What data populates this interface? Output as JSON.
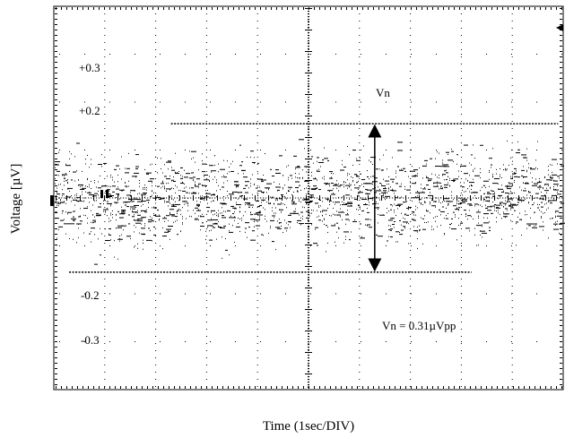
{
  "chart_data": {
    "type": "line",
    "title": "",
    "xlabel": "Time (1sec/DIV)",
    "ylabel": "Voltage [µV]",
    "xlim": [
      0,
      10
    ],
    "ylim": [
      -0.4,
      0.4
    ],
    "y_tick_labels": [
      {
        "value": 0.3,
        "label": "+0.3"
      },
      {
        "value": 0.2,
        "label": "+0.2"
      },
      {
        "value": -0.2,
        "label": "-0.2"
      },
      {
        "value": -0.3,
        "label": "-0.3"
      }
    ],
    "grid": "dotted",
    "noise_band": {
      "center": 0.0,
      "upper": 0.155,
      "lower": -0.155
    },
    "reference_lines": [
      {
        "name": "upper",
        "value": 0.155,
        "x_start": 2.3,
        "x_end": 9.9
      },
      {
        "name": "lower",
        "value": -0.155,
        "x_start": 0.3,
        "x_end": 8.2
      }
    ],
    "annotations": {
      "arrow_label": "Vn",
      "arrow_x": 6.3,
      "measurement": "Vn = 0.31µVpp"
    },
    "colors": {
      "trace": "#000000",
      "grid": "#000000",
      "background": "#ffffff"
    }
  }
}
